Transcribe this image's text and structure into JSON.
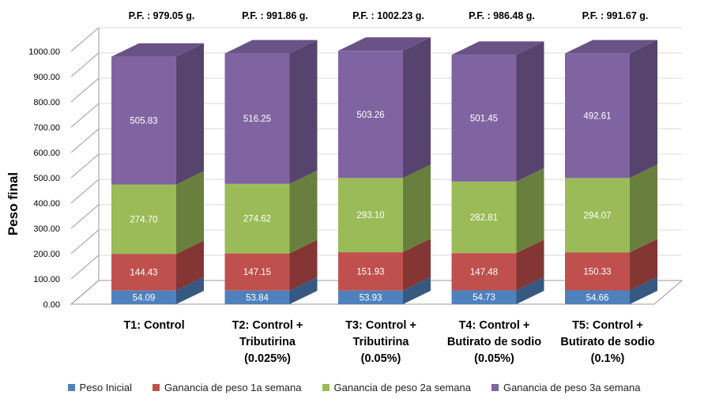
{
  "chart_data": {
    "type": "bar",
    "stacked": true,
    "three_d": true,
    "ylabel": "Peso final",
    "ylim": [
      0,
      1000
    ],
    "ytick_step": 100,
    "yticks": [
      "0.00",
      "100.00",
      "200.00",
      "300.00",
      "400.00",
      "500.00",
      "600.00",
      "700.00",
      "800.00",
      "900.00",
      "1000.00"
    ],
    "categories": [
      [
        "T1: Control"
      ],
      [
        "T2: Control +",
        "Tributirina",
        "(0.025%)"
      ],
      [
        "T3: Control +",
        "Tributirina",
        "(0.05%)"
      ],
      [
        "T4: Control +",
        "Butirato de sodio",
        "(0.05%)"
      ],
      [
        "T5: Control +",
        "Butirato de sodio",
        "(0.1%)"
      ]
    ],
    "totals": [
      "P.F. : 979.05 g.",
      "P.F. : 991.86 g.",
      "P.F. : 1002.23 g.",
      "P.F. : 986.48 g.",
      "P.F. : 991.67 g."
    ],
    "series": [
      {
        "name": "Peso Inicial",
        "color": "#4F81BD",
        "values": [
          54.09,
          53.84,
          53.93,
          54.73,
          54.66
        ],
        "labels": [
          "54.09",
          "53.84",
          "53.93",
          "54.73",
          "54.66"
        ]
      },
      {
        "name": "Ganancia de peso 1a semana",
        "color": "#C0504D",
        "values": [
          144.43,
          147.15,
          151.93,
          147.48,
          150.33
        ],
        "labels": [
          "144.43",
          "147.15",
          "151.93",
          "147.48",
          "150.33"
        ]
      },
      {
        "name": "Ganancia de peso 2a semana",
        "color": "#9BBB59",
        "values": [
          274.7,
          274.62,
          293.1,
          282.81,
          294.07
        ],
        "labels": [
          "274.70",
          "274.62",
          "293.10",
          "282.81",
          "294.07"
        ]
      },
      {
        "name": "Ganancia de peso 3a semana",
        "color": "#8064A2",
        "values": [
          505.83,
          516.25,
          503.26,
          501.45,
          492.61
        ],
        "labels": [
          "505.83",
          "516.25",
          "503.26",
          "501.45",
          "492.61"
        ]
      }
    ],
    "legend_position": "bottom"
  }
}
